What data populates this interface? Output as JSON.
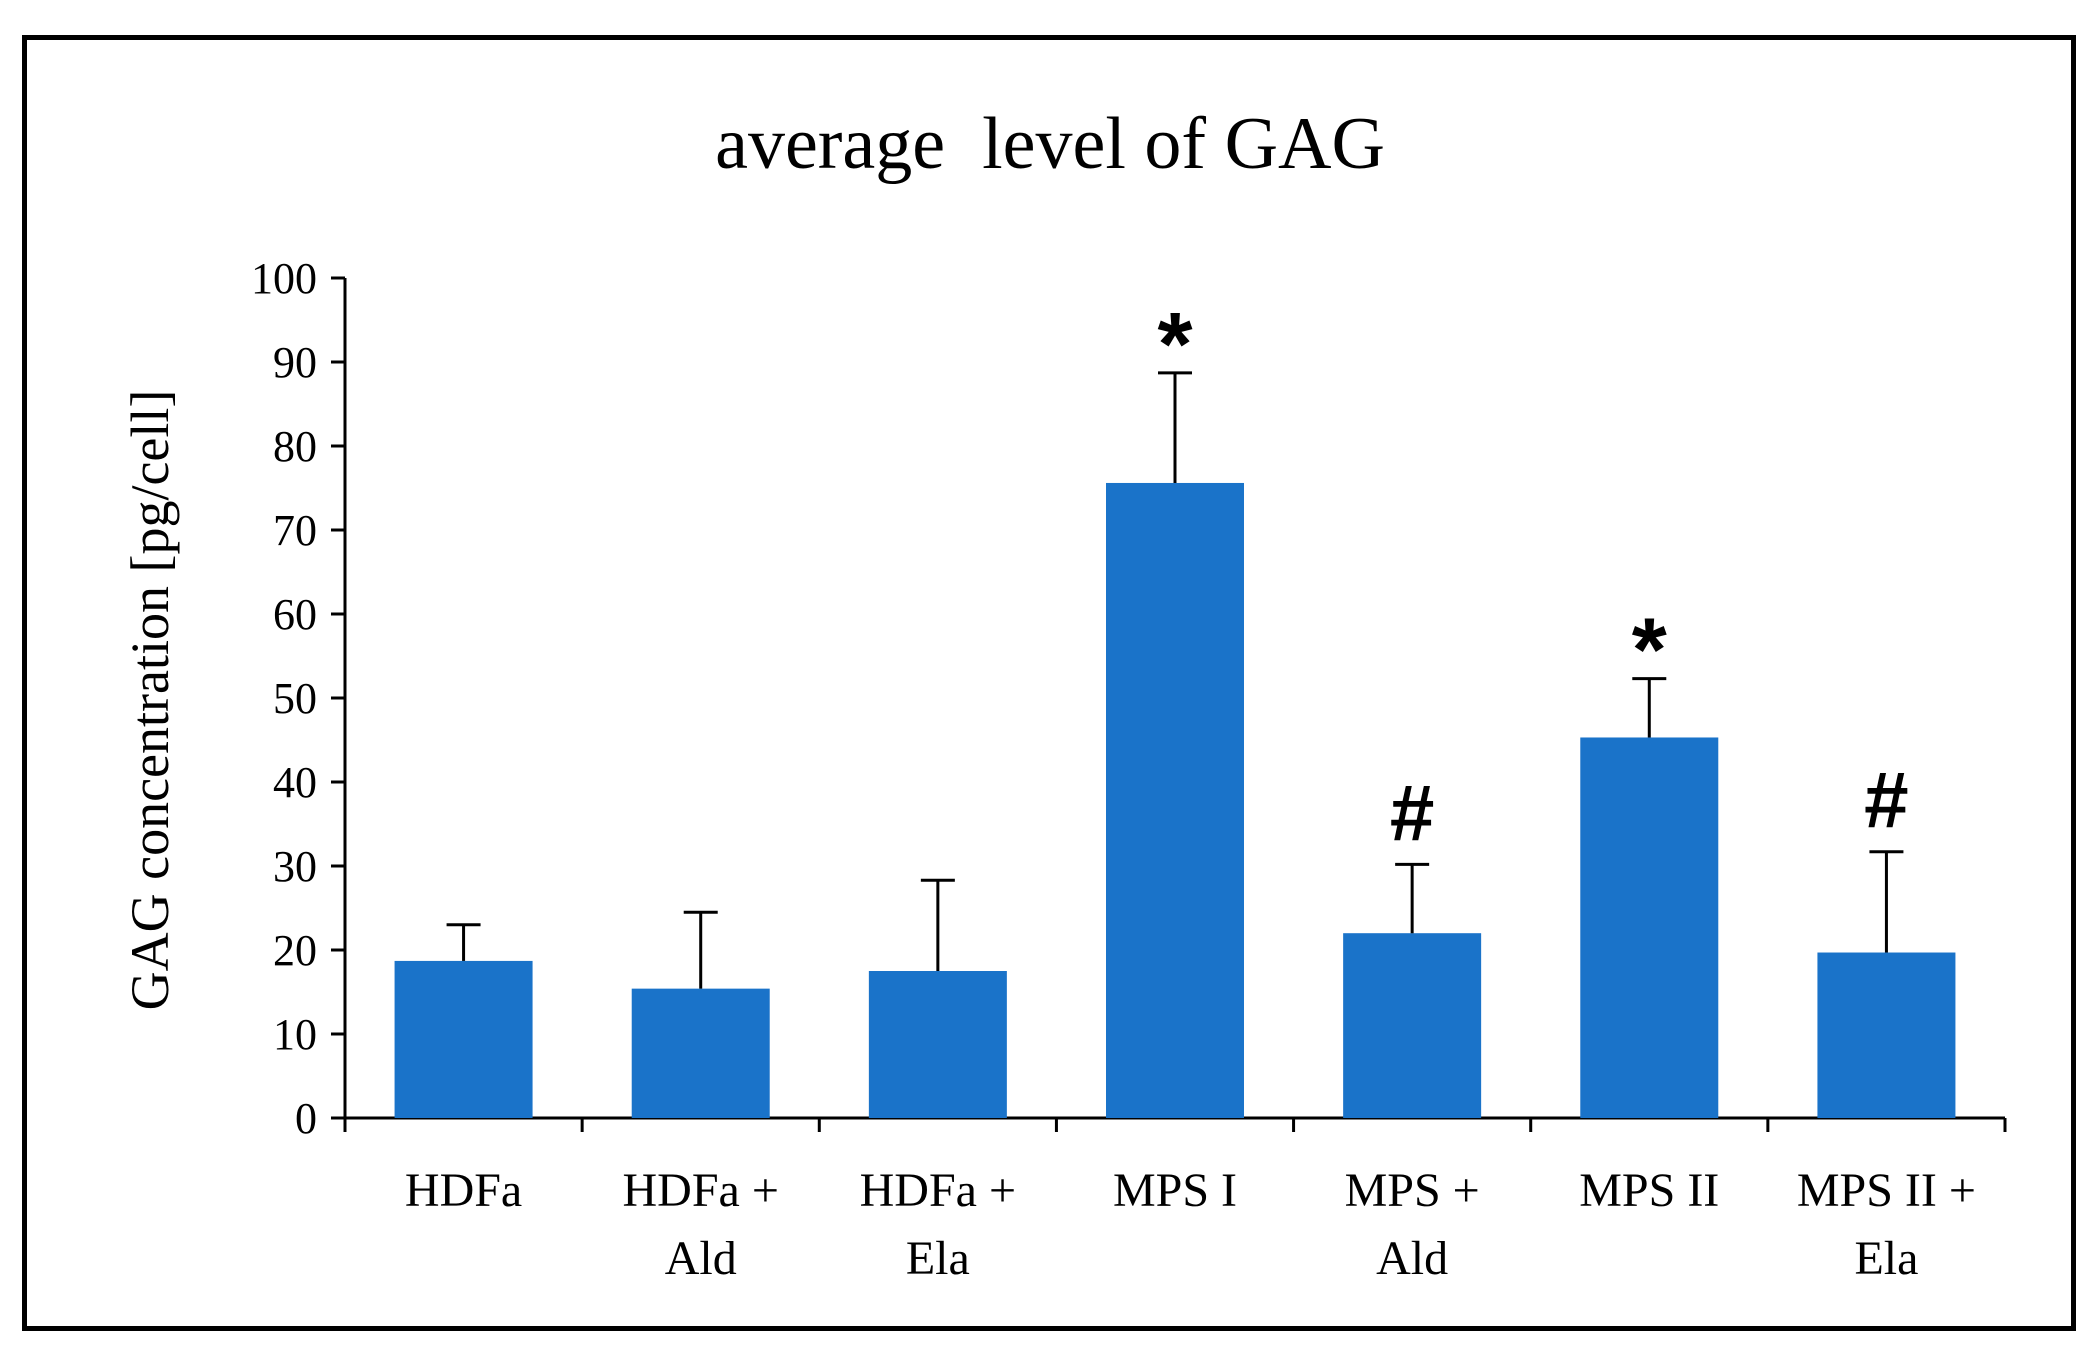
{
  "chart_data": {
    "type": "bar",
    "title": "average  level of GAG",
    "xlabel": "",
    "ylabel": "GAG concentration [pg/cell]",
    "ylim": [
      0,
      100
    ],
    "yticks": [
      0,
      10,
      20,
      30,
      40,
      50,
      60,
      70,
      80,
      90,
      100
    ],
    "grid": false,
    "categories": [
      [
        "HDFa"
      ],
      [
        "HDFa +",
        "Ald"
      ],
      [
        "HDFa +",
        "Ela"
      ],
      [
        "MPS I"
      ],
      [
        "MPS +",
        "Ald"
      ],
      [
        "MPS II"
      ],
      [
        "MPS II +",
        "Ela"
      ]
    ],
    "values": [
      18.7,
      15.4,
      17.5,
      75.6,
      22.0,
      45.3,
      19.7
    ],
    "error_upper": [
      23.0,
      24.5,
      28.3,
      88.7,
      30.2,
      52.3,
      31.7
    ],
    "annotations": [
      "",
      "",
      "",
      "*",
      "#",
      "*",
      "#"
    ],
    "bar_color": "#1a73c9"
  }
}
